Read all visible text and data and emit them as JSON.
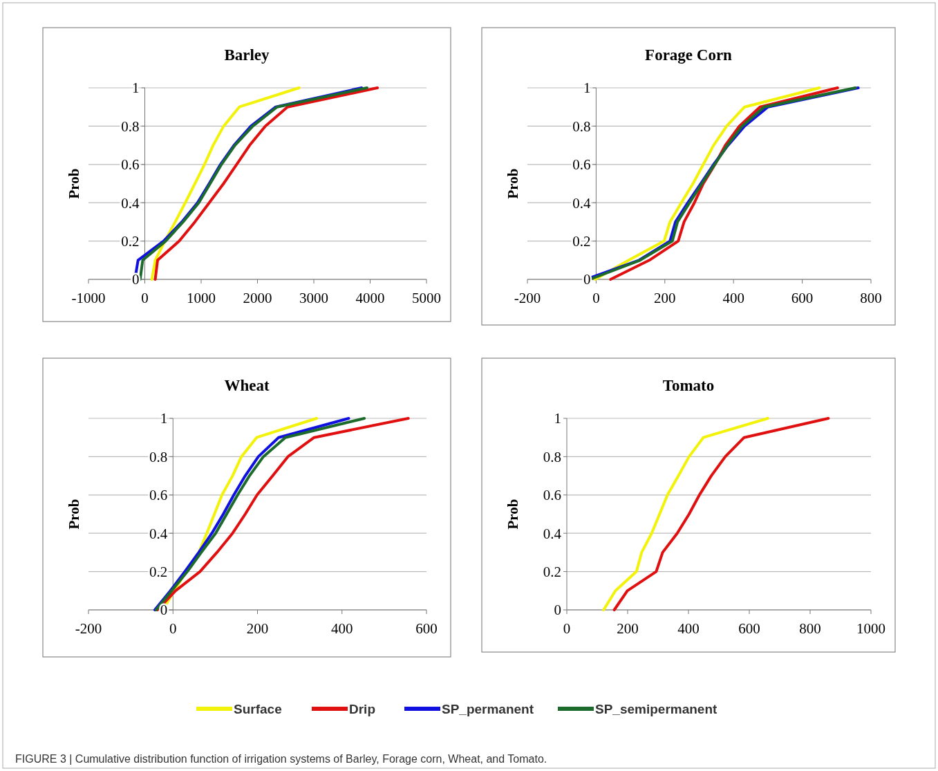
{
  "chart_data": [
    {
      "type": "line",
      "title": "Barley",
      "ylabel": "Prob",
      "xlim": [
        -1000,
        5000
      ],
      "xticks": [
        -1000,
        0,
        1000,
        2000,
        3000,
        4000,
        5000
      ],
      "ylim": [
        0,
        1
      ],
      "yticks": [
        0,
        0.2,
        0.4,
        0.6,
        0.8,
        1
      ],
      "grid": "y",
      "legend": "bottom",
      "line_style": "solid",
      "annotations": [
        "FIGURE 3 | Cumulative distribution function of irrigation systems of Barley, Forage corn, Wheat, and Tomato."
      ],
      "series": [
        {
          "name": "Surface",
          "color": "#f2f20a",
          "x": [
            125,
            185,
            356,
            540,
            718,
            890,
            1060,
            1213,
            1400,
            1676,
            2740
          ],
          "values": [
            0,
            0.1,
            0.2,
            0.3,
            0.4,
            0.5,
            0.6,
            0.7,
            0.8,
            0.9,
            1
          ]
        },
        {
          "name": "Drip",
          "color": "#e01010",
          "x": [
            185,
            227,
            611,
            889,
            1143,
            1398,
            1630,
            1861,
            2139,
            2532,
            4130
          ],
          "values": [
            0,
            0.1,
            0.2,
            0.3,
            0.4,
            0.5,
            0.6,
            0.7,
            0.8,
            0.9,
            1
          ]
        },
        {
          "name": "SP_permanent",
          "color": "#1010e0",
          "x": [
            -176,
            -120,
            333,
            657,
            935,
            1143,
            1343,
            1583,
            1884,
            2324,
            3850
          ],
          "values": [
            0,
            0.1,
            0.2,
            0.3,
            0.4,
            0.5,
            0.6,
            0.7,
            0.8,
            0.9,
            1
          ]
        },
        {
          "name": "SP_semipermanent",
          "color": "#1d6b2c",
          "x": [
            -83,
            -37,
            370,
            680,
            958,
            1160,
            1361,
            1600,
            1917,
            2347,
            3944
          ],
          "values": [
            0,
            0.1,
            0.2,
            0.3,
            0.4,
            0.5,
            0.6,
            0.7,
            0.8,
            0.9,
            1
          ]
        }
      ]
    },
    {
      "type": "line",
      "title": "Forage Corn",
      "ylabel": "Prob",
      "xlim": [
        -200,
        800
      ],
      "xticks": [
        -200,
        0,
        200,
        400,
        600,
        800
      ],
      "ylim": [
        0,
        1
      ],
      "yticks": [
        0,
        0.2,
        0.4,
        0.6,
        0.8,
        1
      ],
      "grid": "y",
      "line_style": "solid",
      "series": [
        {
          "color": "#f2f20a",
          "x": [
            -3,
            95,
            198,
            215,
            248,
            282,
            312,
            342,
            380,
            432,
            650
          ],
          "values": [
            0,
            0.1,
            0.2,
            0.3,
            0.4,
            0.5,
            0.6,
            0.7,
            0.8,
            0.9,
            1
          ]
        },
        {
          "color": "#e01010",
          "x": [
            42,
            155,
            239,
            256,
            286,
            312,
            346,
            376,
            417,
            477,
            703
          ],
          "values": [
            0,
            0.1,
            0.2,
            0.3,
            0.4,
            0.5,
            0.6,
            0.7,
            0.8,
            0.9,
            1
          ]
        },
        {
          "color": "#1010e0",
          "x": [
            -29,
            125,
            215,
            231,
            267,
            305,
            342,
            384,
            432,
            500,
            763
          ],
          "values": [
            0,
            0.1,
            0.2,
            0.3,
            0.4,
            0.5,
            0.6,
            0.7,
            0.8,
            0.9,
            1
          ]
        },
        {
          "color": "#1d6b2c",
          "x": [
            -18,
            128,
            222,
            237,
            272,
            308,
            345,
            382,
            425,
            489,
            755
          ],
          "values": [
            0,
            0.1,
            0.2,
            0.3,
            0.4,
            0.5,
            0.6,
            0.7,
            0.8,
            0.9,
            1
          ]
        }
      ]
    },
    {
      "type": "line",
      "title": "Wheat",
      "ylabel": "Prob",
      "xlim": [
        -200,
        600
      ],
      "xticks": [
        -200,
        0,
        200,
        400,
        600
      ],
      "ylim": [
        0,
        1
      ],
      "yticks": [
        0,
        0.2,
        0.4,
        0.6,
        0.8,
        1
      ],
      "grid": "y",
      "line_style": "solid",
      "series": [
        {
          "color": "#f2f20a",
          "x": [
            -24,
            3,
            31,
            61,
            80,
            98,
            116,
            141,
            162,
            198,
            340
          ],
          "values": [
            0,
            0.1,
            0.2,
            0.3,
            0.4,
            0.5,
            0.6,
            0.7,
            0.8,
            0.9,
            1
          ]
        },
        {
          "color": "#e01010",
          "x": [
            -37,
            6,
            64,
            104,
            141,
            171,
            199,
            236,
            272,
            334,
            557
          ],
          "values": [
            0,
            0.1,
            0.2,
            0.3,
            0.4,
            0.5,
            0.6,
            0.7,
            0.8,
            0.9,
            1
          ]
        },
        {
          "color": "#1010e0",
          "x": [
            -43,
            -6,
            28,
            61,
            92,
            119,
            144,
            171,
            202,
            250,
            416
          ],
          "values": [
            0,
            0.1,
            0.2,
            0.3,
            0.4,
            0.5,
            0.6,
            0.7,
            0.8,
            0.9,
            1
          ]
        },
        {
          "color": "#1d6b2c",
          "x": [
            -40,
            -3,
            34,
            67,
            101,
            127,
            153,
            181,
            214,
            266,
            453
          ],
          "values": [
            0,
            0.1,
            0.2,
            0.3,
            0.4,
            0.5,
            0.6,
            0.7,
            0.8,
            0.9,
            1
          ]
        }
      ]
    },
    {
      "type": "line",
      "title": "Tomato",
      "ylabel": "Prob",
      "xlim": [
        0,
        1000
      ],
      "xticks": [
        0,
        200,
        400,
        600,
        800,
        1000
      ],
      "ylim": [
        0,
        1
      ],
      "yticks": [
        0,
        0.2,
        0.4,
        0.6,
        0.8,
        1
      ],
      "grid": "y",
      "line_style": "solid",
      "series": [
        {
          "color": "#f2f20a",
          "x": [
            121,
            160,
            229,
            246,
            279,
            305,
            331,
            367,
            402,
            449,
            661
          ],
          "values": [
            0,
            0.1,
            0.2,
            0.3,
            0.4,
            0.5,
            0.6,
            0.7,
            0.8,
            0.9,
            1
          ]
        },
        {
          "color": "#e01010",
          "x": [
            156,
            199,
            294,
            315,
            363,
            402,
            436,
            475,
            521,
            583,
            860
          ],
          "values": [
            0,
            0.1,
            0.2,
            0.3,
            0.4,
            0.5,
            0.6,
            0.7,
            0.8,
            0.9,
            1
          ]
        }
      ]
    }
  ]
}
